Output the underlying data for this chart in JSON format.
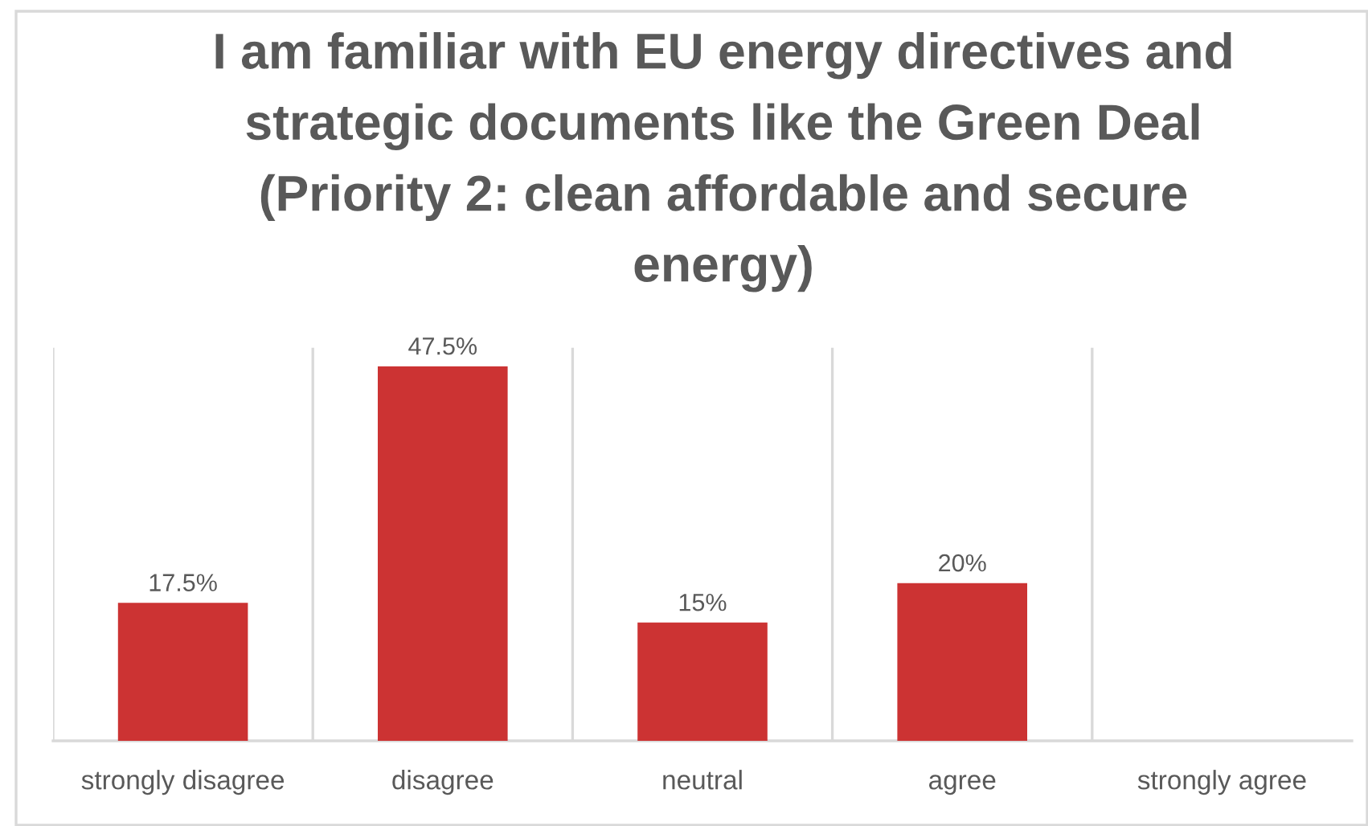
{
  "chart_data": {
    "type": "bar",
    "title": "I am familiar with EU energy directives and strategic documents like the Green Deal (Priority 2: clean affordable and secure energy)",
    "categories": [
      "strongly disagree",
      "disagree",
      "neutral",
      "agree",
      "strongly agree"
    ],
    "values": [
      17.5,
      47.5,
      15,
      20,
      null
    ],
    "color": "#cc3333",
    "value_labels": [
      "17.5%",
      "47.5%",
      "15%",
      "20%",
      null
    ],
    "grid": "x"
  }
}
